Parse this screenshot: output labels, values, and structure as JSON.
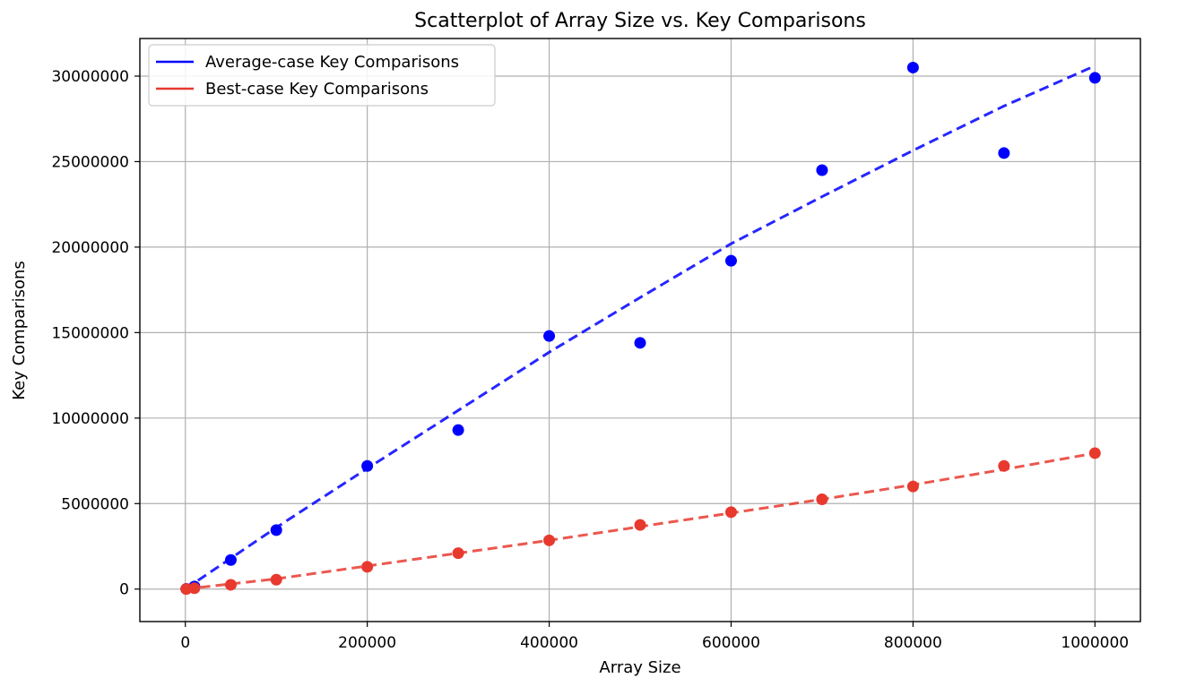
{
  "chart_data": {
    "type": "scatter",
    "title": "Scatterplot of Array Size vs. Key Comparisons",
    "xlabel": "Array Size",
    "ylabel": "Key Comparisons",
    "xlim": [
      -50000,
      1050000
    ],
    "ylim": [
      -1900000,
      32200000
    ],
    "xticks": [
      0,
      200000,
      400000,
      600000,
      800000,
      1000000
    ],
    "xtick_labels": [
      "0",
      "200000",
      "400000",
      "600000",
      "800000",
      "1000000"
    ],
    "yticks": [
      0,
      5000000,
      10000000,
      15000000,
      20000000,
      25000000,
      30000000
    ],
    "ytick_labels": [
      "0",
      "5000000",
      "10000000",
      "15000000",
      "20000000",
      "25000000",
      "30000000"
    ],
    "grid": true,
    "legend_position": "top-left",
    "series": [
      {
        "name": "Average-case Key Comparisons",
        "color": "#0000ff",
        "x": [
          1000,
          10000,
          50000,
          100000,
          200000,
          300000,
          400000,
          500000,
          600000,
          700000,
          800000,
          900000,
          1000000
        ],
        "y": [
          10000,
          150000,
          1700000,
          3450000,
          7200000,
          9300000,
          14800000,
          14400000,
          19200000,
          24500000,
          30500000,
          25500000,
          29900000
        ],
        "trend": {
          "style": "dashed",
          "x": [
            0,
            100000,
            200000,
            300000,
            400000,
            500000,
            600000,
            700000,
            800000,
            900000,
            1000000
          ],
          "y": [
            0,
            3600000,
            7050000,
            10450000,
            13850000,
            17050000,
            20200000,
            22950000,
            25650000,
            28250000,
            30600000
          ]
        }
      },
      {
        "name": "Best-case Key Comparisons",
        "color": "#e8392f",
        "x": [
          1000,
          10000,
          50000,
          100000,
          200000,
          300000,
          400000,
          500000,
          600000,
          700000,
          800000,
          900000,
          1000000
        ],
        "y": [
          5000,
          50000,
          250000,
          550000,
          1300000,
          2100000,
          2850000,
          3750000,
          4500000,
          5250000,
          6000000,
          7200000,
          7950000
        ],
        "trend": {
          "style": "dashed",
          "x": [
            0,
            100000,
            200000,
            300000,
            400000,
            500000,
            600000,
            700000,
            800000,
            900000,
            1000000
          ],
          "y": [
            0,
            600000,
            1350000,
            2100000,
            2850000,
            3650000,
            4450000,
            5250000,
            6100000,
            7000000,
            7950000
          ]
        }
      }
    ]
  }
}
